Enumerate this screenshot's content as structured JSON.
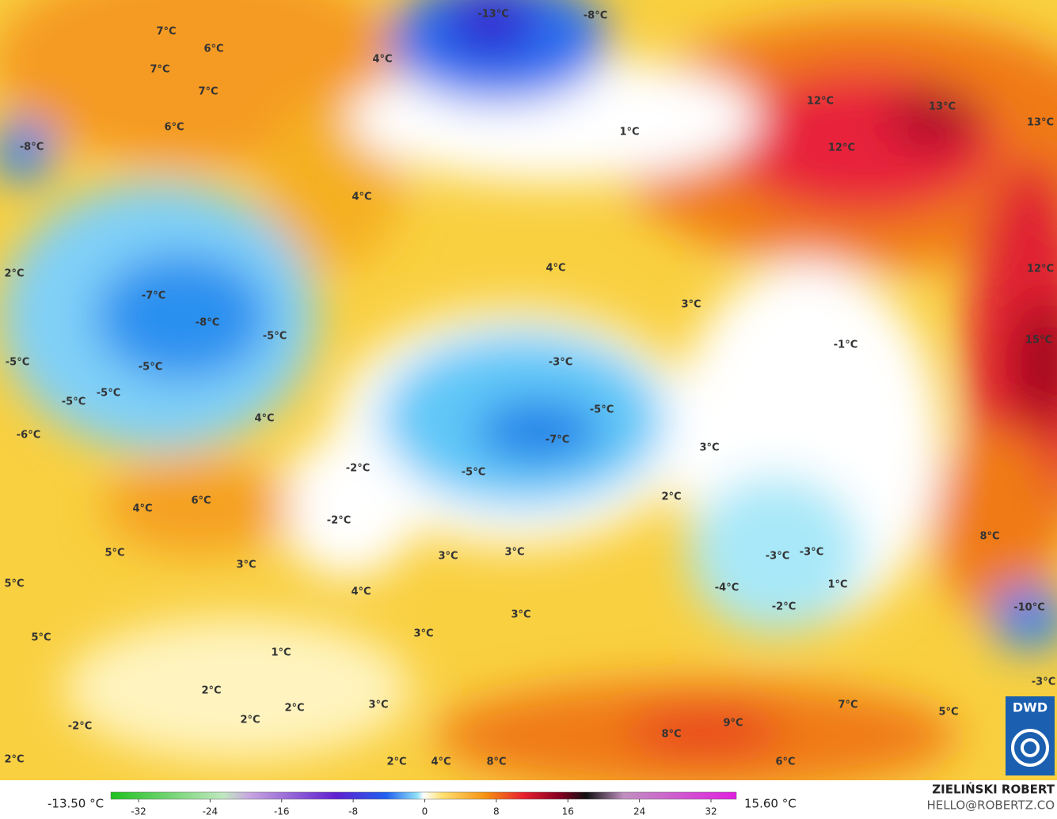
{
  "map": {
    "labels": [
      "-13°C",
      "-8°C",
      "7°C",
      "6°C",
      "4°C",
      "7°C",
      "7°C",
      "6°C",
      "1°C",
      "12°C",
      "13°C",
      "13°C",
      "12°C",
      "-8°C",
      "4°C",
      "4°C",
      "2°C",
      "12°C",
      "-7°C",
      "3°C",
      "-8°C",
      "-5°C",
      "-1°C",
      "15°C",
      "-5°C",
      "-3°C",
      "-5°C",
      "-5°C",
      "-5°C",
      "-5°C",
      "4°C",
      "-6°C",
      "-7°C",
      "3°C",
      "-2°C",
      "-5°C",
      "6°C",
      "2°C",
      "4°C",
      "-2°C",
      "8°C",
      "5°C",
      "3°C",
      "3°C",
      "-3°C",
      "-3°C",
      "3°C",
      "5°C",
      "1°C",
      "4°C",
      "-4°C",
      "-10°C",
      "-2°C",
      "3°C",
      "5°C",
      "3°C",
      "1°C",
      "-3°C",
      "2°C",
      "3°C",
      "2°C",
      "7°C",
      "5°C",
      "2°C",
      "9°C",
      "-2°C",
      "8°C",
      "2°C",
      "2°C",
      "4°C",
      "8°C",
      "6°C"
    ]
  },
  "legend": {
    "min": "-13.50 °C",
    "max": "15.60 °C",
    "ticks": [
      -32,
      -24,
      -16,
      -8,
      0,
      8,
      16,
      24,
      32
    ]
  },
  "credit": {
    "author": "ZIELIŃSKI ROBERT",
    "email": "HELLO@ROBERTZ.CO",
    "logo": "DWD"
  }
}
